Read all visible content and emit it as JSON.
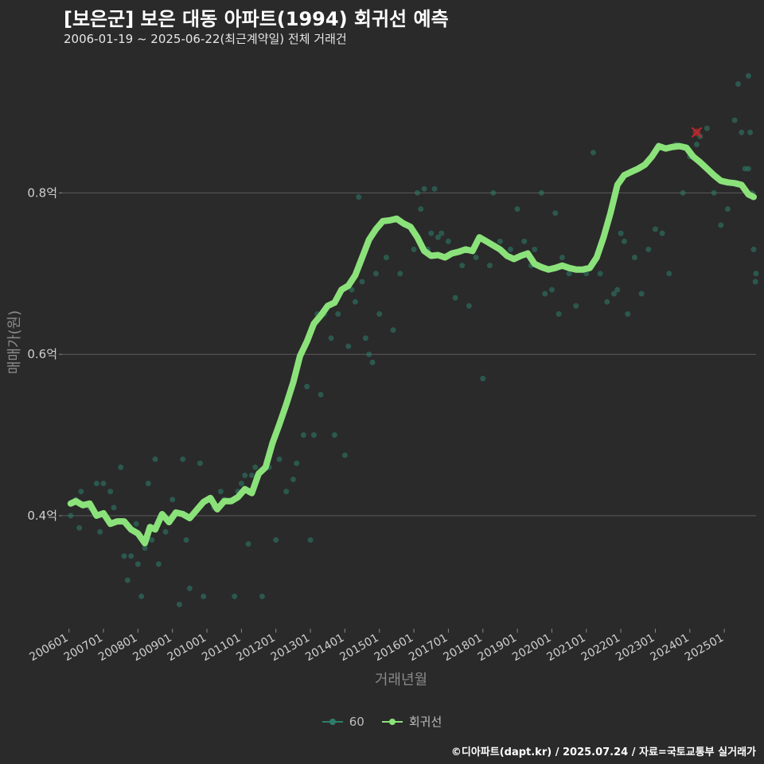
{
  "title": "[보은군] 보은 대동 아파트(1994) 회귀선 예측",
  "subtitle": "2006-01-19 ~ 2025-06-22(최근계약일) 전체 거래건",
  "caption": "©디아파트(dapt.kr) / 2025.07.24 / 자료=국토교통부 실거래가",
  "colors": {
    "background": "#2a2a2a",
    "scatter": "#2e7d6b",
    "regression": "#8be27a",
    "highlight": "#c0282f",
    "grid": "#5a5a5a"
  },
  "legend": [
    {
      "label": "60",
      "color": "#2e7d6b"
    },
    {
      "label": "회귀선",
      "color": "#8be27a"
    }
  ],
  "chart_data": {
    "type": "scatter",
    "xlabel": "거래년월",
    "ylabel": "매매가(원)",
    "x_ticks": [
      "200601",
      "200701",
      "200801",
      "200901",
      "201001",
      "201101",
      "201201",
      "201301",
      "201401",
      "201501",
      "201601",
      "201701",
      "201801",
      "201901",
      "202001",
      "202101",
      "202201",
      "202301",
      "202401",
      "202501"
    ],
    "y_ticks": [
      {
        "value": 0.4,
        "label": "0.4억"
      },
      {
        "value": 0.6,
        "label": "0.6억"
      },
      {
        "value": 0.8,
        "label": "0.8억"
      }
    ],
    "xlim": [
      2005.8,
      2025.92
    ],
    "ylim": [
      0.26,
      0.97
    ],
    "grid": true,
    "legend_position": "bottom",
    "series": [
      {
        "name": "60",
        "kind": "scatter",
        "points": [
          [
            2006.05,
            0.4
          ],
          [
            2006.2,
            0.42
          ],
          [
            2006.3,
            0.385
          ],
          [
            2006.35,
            0.43
          ],
          [
            2006.6,
            0.41
          ],
          [
            2006.8,
            0.44
          ],
          [
            2006.9,
            0.38
          ],
          [
            2007.0,
            0.44
          ],
          [
            2007.2,
            0.43
          ],
          [
            2007.3,
            0.41
          ],
          [
            2007.5,
            0.46
          ],
          [
            2007.6,
            0.35
          ],
          [
            2007.7,
            0.32
          ],
          [
            2007.8,
            0.35
          ],
          [
            2007.95,
            0.39
          ],
          [
            2008.0,
            0.34
          ],
          [
            2008.1,
            0.3
          ],
          [
            2008.2,
            0.36
          ],
          [
            2008.3,
            0.44
          ],
          [
            2008.4,
            0.37
          ],
          [
            2008.5,
            0.47
          ],
          [
            2008.6,
            0.34
          ],
          [
            2008.8,
            0.38
          ],
          [
            2009.0,
            0.42
          ],
          [
            2009.2,
            0.29
          ],
          [
            2009.3,
            0.47
          ],
          [
            2009.4,
            0.37
          ],
          [
            2009.5,
            0.31
          ],
          [
            2009.8,
            0.465
          ],
          [
            2009.9,
            0.3
          ],
          [
            2010.2,
            0.41
          ],
          [
            2010.4,
            0.43
          ],
          [
            2010.5,
            0.42
          ],
          [
            2010.8,
            0.3
          ],
          [
            2010.9,
            0.43
          ],
          [
            2011.0,
            0.44
          ],
          [
            2011.1,
            0.45
          ],
          [
            2011.2,
            0.365
          ],
          [
            2011.3,
            0.45
          ],
          [
            2011.4,
            0.46
          ],
          [
            2011.6,
            0.3
          ],
          [
            2011.8,
            0.46
          ],
          [
            2012.0,
            0.37
          ],
          [
            2012.1,
            0.47
          ],
          [
            2012.3,
            0.43
          ],
          [
            2012.5,
            0.445
          ],
          [
            2012.6,
            0.465
          ],
          [
            2012.8,
            0.5
          ],
          [
            2012.9,
            0.56
          ],
          [
            2013.0,
            0.37
          ],
          [
            2013.1,
            0.5
          ],
          [
            2013.2,
            0.65
          ],
          [
            2013.3,
            0.55
          ],
          [
            2013.4,
            0.65
          ],
          [
            2013.6,
            0.62
          ],
          [
            2013.7,
            0.5
          ],
          [
            2013.8,
            0.65
          ],
          [
            2014.0,
            0.475
          ],
          [
            2014.1,
            0.61
          ],
          [
            2014.2,
            0.68
          ],
          [
            2014.3,
            0.665
          ],
          [
            2014.4,
            0.795
          ],
          [
            2014.5,
            0.69
          ],
          [
            2014.6,
            0.62
          ],
          [
            2014.7,
            0.6
          ],
          [
            2014.8,
            0.59
          ],
          [
            2014.9,
            0.7
          ],
          [
            2015.0,
            0.65
          ],
          [
            2015.2,
            0.72
          ],
          [
            2015.4,
            0.63
          ],
          [
            2015.6,
            0.7
          ],
          [
            2015.8,
            0.76
          ],
          [
            2016.0,
            0.73
          ],
          [
            2016.1,
            0.8
          ],
          [
            2016.2,
            0.78
          ],
          [
            2016.3,
            0.805
          ],
          [
            2016.4,
            0.73
          ],
          [
            2016.5,
            0.75
          ],
          [
            2016.6,
            0.805
          ],
          [
            2016.7,
            0.745
          ],
          [
            2016.8,
            0.75
          ],
          [
            2017.0,
            0.74
          ],
          [
            2017.2,
            0.67
          ],
          [
            2017.4,
            0.71
          ],
          [
            2017.6,
            0.66
          ],
          [
            2017.8,
            0.72
          ],
          [
            2018.0,
            0.57
          ],
          [
            2018.2,
            0.71
          ],
          [
            2018.3,
            0.8
          ],
          [
            2018.5,
            0.74
          ],
          [
            2018.8,
            0.73
          ],
          [
            2019.0,
            0.78
          ],
          [
            2019.2,
            0.74
          ],
          [
            2019.4,
            0.71
          ],
          [
            2019.5,
            0.73
          ],
          [
            2019.7,
            0.8
          ],
          [
            2019.8,
            0.675
          ],
          [
            2020.0,
            0.68
          ],
          [
            2020.1,
            0.775
          ],
          [
            2020.2,
            0.65
          ],
          [
            2020.3,
            0.72
          ],
          [
            2020.5,
            0.7
          ],
          [
            2020.7,
            0.66
          ],
          [
            2020.8,
            0.705
          ],
          [
            2021.0,
            0.7
          ],
          [
            2021.2,
            0.85
          ],
          [
            2021.4,
            0.7
          ],
          [
            2021.6,
            0.665
          ],
          [
            2021.8,
            0.675
          ],
          [
            2021.9,
            0.68
          ],
          [
            2022.0,
            0.75
          ],
          [
            2022.1,
            0.74
          ],
          [
            2022.2,
            0.65
          ],
          [
            2022.4,
            0.72
          ],
          [
            2022.6,
            0.675
          ],
          [
            2022.8,
            0.73
          ],
          [
            2023.0,
            0.755
          ],
          [
            2023.2,
            0.75
          ],
          [
            2023.4,
            0.7
          ],
          [
            2023.6,
            0.86
          ],
          [
            2023.8,
            0.8
          ],
          [
            2024.0,
            0.845
          ],
          [
            2024.2,
            0.86
          ],
          [
            2024.3,
            0.87
          ],
          [
            2024.5,
            0.88
          ],
          [
            2024.7,
            0.8
          ],
          [
            2024.9,
            0.76
          ],
          [
            2025.1,
            0.78
          ],
          [
            2025.3,
            0.89
          ],
          [
            2025.4,
            0.935
          ],
          [
            2025.5,
            0.875
          ],
          [
            2025.6,
            0.83
          ],
          [
            2025.7,
            0.945
          ],
          [
            2025.8,
            0.8
          ],
          [
            2025.85,
            0.73
          ],
          [
            2025.7,
            0.83
          ],
          [
            2025.9,
            0.69
          ],
          [
            2025.92,
            0.7
          ],
          [
            2025.75,
            0.875
          ]
        ]
      },
      {
        "name": "회귀선",
        "kind": "line",
        "points": [
          [
            2006.05,
            0.415
          ],
          [
            2006.2,
            0.418
          ],
          [
            2006.4,
            0.413
          ],
          [
            2006.6,
            0.415
          ],
          [
            2006.8,
            0.4
          ],
          [
            2007.0,
            0.403
          ],
          [
            2007.2,
            0.39
          ],
          [
            2007.4,
            0.393
          ],
          [
            2007.6,
            0.393
          ],
          [
            2007.8,
            0.383
          ],
          [
            2008.0,
            0.378
          ],
          [
            2008.2,
            0.366
          ],
          [
            2008.35,
            0.386
          ],
          [
            2008.5,
            0.383
          ],
          [
            2008.7,
            0.402
          ],
          [
            2008.9,
            0.392
          ],
          [
            2009.1,
            0.404
          ],
          [
            2009.3,
            0.402
          ],
          [
            2009.5,
            0.397
          ],
          [
            2009.7,
            0.407
          ],
          [
            2009.9,
            0.417
          ],
          [
            2010.1,
            0.422
          ],
          [
            2010.3,
            0.408
          ],
          [
            2010.5,
            0.418
          ],
          [
            2010.7,
            0.418
          ],
          [
            2010.9,
            0.423
          ],
          [
            2011.1,
            0.433
          ],
          [
            2011.3,
            0.428
          ],
          [
            2011.5,
            0.452
          ],
          [
            2011.7,
            0.46
          ],
          [
            2011.9,
            0.49
          ],
          [
            2012.1,
            0.513
          ],
          [
            2012.3,
            0.538
          ],
          [
            2012.5,
            0.565
          ],
          [
            2012.7,
            0.598
          ],
          [
            2012.9,
            0.616
          ],
          [
            2013.1,
            0.638
          ],
          [
            2013.3,
            0.648
          ],
          [
            2013.5,
            0.66
          ],
          [
            2013.7,
            0.664
          ],
          [
            2013.9,
            0.68
          ],
          [
            2014.1,
            0.685
          ],
          [
            2014.3,
            0.698
          ],
          [
            2014.5,
            0.72
          ],
          [
            2014.7,
            0.742
          ],
          [
            2014.9,
            0.755
          ],
          [
            2015.1,
            0.765
          ],
          [
            2015.3,
            0.766
          ],
          [
            2015.5,
            0.768
          ],
          [
            2015.7,
            0.762
          ],
          [
            2015.9,
            0.758
          ],
          [
            2016.1,
            0.745
          ],
          [
            2016.3,
            0.728
          ],
          [
            2016.5,
            0.722
          ],
          [
            2016.7,
            0.723
          ],
          [
            2016.9,
            0.72
          ],
          [
            2017.1,
            0.725
          ],
          [
            2017.3,
            0.727
          ],
          [
            2017.5,
            0.73
          ],
          [
            2017.7,
            0.728
          ],
          [
            2017.9,
            0.745
          ],
          [
            2018.1,
            0.74
          ],
          [
            2018.3,
            0.735
          ],
          [
            2018.5,
            0.73
          ],
          [
            2018.7,
            0.722
          ],
          [
            2018.9,
            0.718
          ],
          [
            2019.1,
            0.722
          ],
          [
            2019.3,
            0.725
          ],
          [
            2019.5,
            0.712
          ],
          [
            2019.7,
            0.708
          ],
          [
            2019.9,
            0.705
          ],
          [
            2020.1,
            0.707
          ],
          [
            2020.3,
            0.71
          ],
          [
            2020.5,
            0.707
          ],
          [
            2020.7,
            0.705
          ],
          [
            2020.9,
            0.705
          ],
          [
            2021.1,
            0.707
          ],
          [
            2021.3,
            0.72
          ],
          [
            2021.5,
            0.745
          ],
          [
            2021.7,
            0.775
          ],
          [
            2021.9,
            0.81
          ],
          [
            2022.1,
            0.822
          ],
          [
            2022.3,
            0.826
          ],
          [
            2022.5,
            0.83
          ],
          [
            2022.7,
            0.835
          ],
          [
            2022.9,
            0.845
          ],
          [
            2023.1,
            0.858
          ],
          [
            2023.3,
            0.855
          ],
          [
            2023.5,
            0.857
          ],
          [
            2023.7,
            0.858
          ],
          [
            2023.9,
            0.856
          ],
          [
            2024.1,
            0.845
          ],
          [
            2024.3,
            0.838
          ],
          [
            2024.5,
            0.83
          ],
          [
            2024.7,
            0.822
          ],
          [
            2024.9,
            0.815
          ],
          [
            2025.1,
            0.813
          ],
          [
            2025.3,
            0.812
          ],
          [
            2025.5,
            0.81
          ],
          [
            2025.7,
            0.798
          ],
          [
            2025.85,
            0.795
          ]
        ]
      }
    ],
    "highlight_point": [
      2024.2,
      0.875
    ]
  }
}
